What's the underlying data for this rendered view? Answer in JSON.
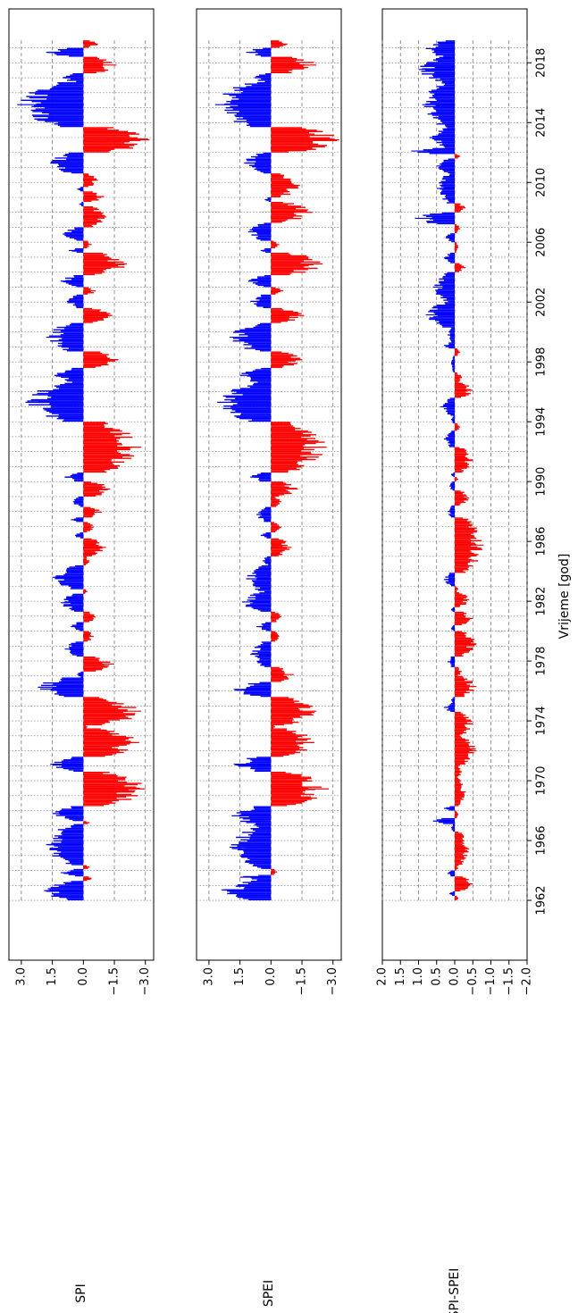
{
  "chart_data": {
    "type": "bar",
    "orientation": "rotated-90-clockwise",
    "shared_xlabel": "Vrijeme [god]",
    "x_ticks": [
      1962,
      1966,
      1970,
      1974,
      1978,
      1982,
      1986,
      1990,
      1994,
      1998,
      2002,
      2006,
      2010,
      2014,
      2018
    ],
    "x_tick_labels": [
      "1962",
      "1966",
      "1970",
      "1974",
      "1978",
      "1982",
      "1986",
      "1990",
      "1994",
      "1998",
      "2002",
      "2006",
      "2010",
      "2014",
      "2018"
    ],
    "xlim": [
      1958.0,
      2021.6
    ],
    "data_start_year": 1962.0,
    "data_end_year": 2019.5,
    "positive_color": "#0000ff",
    "negative_color": "#ff0000",
    "grid": "dashed",
    "panels": [
      {
        "ylabel": "SPI",
        "ylim": [
          -3.4,
          3.6
        ],
        "y_ticks": [
          3.0,
          1.5,
          0.0,
          -1.5,
          -3.0
        ],
        "y_tick_labels": [
          "3.0",
          "1.5",
          "0.0",
          "−1.5",
          "−3.0"
        ],
        "segments": [
          {
            "start": 1962.0,
            "end": 1963.3,
            "peak": 1.9
          },
          {
            "start": 1963.3,
            "end": 1963.6,
            "peak": -0.4
          },
          {
            "start": 1963.6,
            "end": 1964.1,
            "peak": 1.1
          },
          {
            "start": 1964.1,
            "end": 1964.35,
            "peak": -0.3
          },
          {
            "start": 1964.35,
            "end": 1967.1,
            "peak": 1.8
          },
          {
            "start": 1967.1,
            "end": 1967.3,
            "peak": -0.3
          },
          {
            "start": 1967.3,
            "end": 1968.3,
            "peak": 1.5
          },
          {
            "start": 1968.3,
            "end": 1970.6,
            "peak": -3.0
          },
          {
            "start": 1970.6,
            "end": 1971.6,
            "peak": 1.6
          },
          {
            "start": 1971.6,
            "end": 1973.5,
            "peak": -2.7
          },
          {
            "start": 1973.5,
            "end": 1973.7,
            "peak": -0.2
          },
          {
            "start": 1973.7,
            "end": 1975.6,
            "peak": -2.8
          },
          {
            "start": 1975.6,
            "end": 1976.9,
            "peak": 2.2
          },
          {
            "start": 1976.9,
            "end": 1977.3,
            "peak": 0.3
          },
          {
            "start": 1977.3,
            "end": 1978.3,
            "peak": -1.5
          },
          {
            "start": 1978.3,
            "end": 1979.3,
            "peak": 0.9
          },
          {
            "start": 1979.3,
            "end": 1980.0,
            "peak": -0.5
          },
          {
            "start": 1980.0,
            "end": 1980.6,
            "peak": 0.6
          },
          {
            "start": 1980.6,
            "end": 1981.3,
            "peak": -0.6
          },
          {
            "start": 1981.3,
            "end": 1982.5,
            "peak": 1.1
          },
          {
            "start": 1982.5,
            "end": 1982.8,
            "peak": -0.2
          },
          {
            "start": 1982.8,
            "end": 1984.4,
            "peak": 1.5
          },
          {
            "start": 1984.4,
            "end": 1985.0,
            "peak": -0.3
          },
          {
            "start": 1985.0,
            "end": 1986.2,
            "peak": -1.1
          },
          {
            "start": 1986.2,
            "end": 1986.6,
            "peak": 0.4
          },
          {
            "start": 1986.6,
            "end": 1987.3,
            "peak": -0.5
          },
          {
            "start": 1987.3,
            "end": 1987.6,
            "peak": 0.6
          },
          {
            "start": 1987.6,
            "end": 1988.3,
            "peak": -0.9
          },
          {
            "start": 1988.3,
            "end": 1989.0,
            "peak": 0.5
          },
          {
            "start": 1989.0,
            "end": 1990.0,
            "peak": -1.3
          },
          {
            "start": 1990.0,
            "end": 1990.6,
            "peak": 0.9
          },
          {
            "start": 1990.6,
            "end": 1994.0,
            "peak": -2.8
          },
          {
            "start": 1994.0,
            "end": 1996.6,
            "peak": 2.8
          },
          {
            "start": 1996.6,
            "end": 1997.6,
            "peak": 1.4
          },
          {
            "start": 1997.6,
            "end": 1998.7,
            "peak": -1.7
          },
          {
            "start": 1998.7,
            "end": 2000.6,
            "peak": 1.8
          },
          {
            "start": 2000.6,
            "end": 2001.6,
            "peak": -1.4
          },
          {
            "start": 2001.6,
            "end": 2002.5,
            "peak": 0.8
          },
          {
            "start": 2002.5,
            "end": 2003.0,
            "peak": -0.6
          },
          {
            "start": 2003.0,
            "end": 2003.8,
            "peak": 1.1
          },
          {
            "start": 2003.8,
            "end": 2005.3,
            "peak": -2.1
          },
          {
            "start": 2005.3,
            "end": 2005.6,
            "peak": 0.7
          },
          {
            "start": 2005.6,
            "end": 2006.1,
            "peak": -0.4
          },
          {
            "start": 2006.1,
            "end": 2007.0,
            "peak": 1.0
          },
          {
            "start": 2007.0,
            "end": 2008.4,
            "peak": -1.1
          },
          {
            "start": 2008.4,
            "end": 2008.7,
            "peak": 0.2
          },
          {
            "start": 2008.7,
            "end": 2009.4,
            "peak": -1.0
          },
          {
            "start": 2009.4,
            "end": 2009.7,
            "peak": 0.3
          },
          {
            "start": 2009.7,
            "end": 2010.6,
            "peak": -0.7
          },
          {
            "start": 2010.6,
            "end": 2012.0,
            "peak": 1.6
          },
          {
            "start": 2012.0,
            "end": 2013.7,
            "peak": -3.2
          },
          {
            "start": 2013.7,
            "end": 2016.7,
            "peak": 3.2
          },
          {
            "start": 2016.7,
            "end": 2017.3,
            "peak": 1.0
          },
          {
            "start": 2017.3,
            "end": 2018.4,
            "peak": -1.6
          },
          {
            "start": 2018.4,
            "end": 2019.0,
            "peak": 1.8
          },
          {
            "start": 2019.0,
            "end": 2019.5,
            "peak": -0.7
          }
        ]
      },
      {
        "ylabel": "SPEI",
        "ylim": [
          -3.4,
          3.6
        ],
        "y_ticks": [
          3.0,
          1.5,
          0.0,
          -1.5,
          -3.0
        ],
        "y_tick_labels": [
          "3.0",
          "1.5",
          "0.0",
          "−1.5",
          "−3.0"
        ],
        "segments": [
          {
            "start": 1962.0,
            "end": 1963.4,
            "peak": 2.4
          },
          {
            "start": 1963.4,
            "end": 1963.7,
            "peak": 1.5
          },
          {
            "start": 1963.7,
            "end": 1964.1,
            "peak": -0.3
          },
          {
            "start": 1964.1,
            "end": 1967.0,
            "peak": 2.0
          },
          {
            "start": 1967.0,
            "end": 1968.3,
            "peak": 1.9
          },
          {
            "start": 1968.3,
            "end": 1970.6,
            "peak": -2.8
          },
          {
            "start": 1970.6,
            "end": 1971.6,
            "peak": 1.8
          },
          {
            "start": 1971.6,
            "end": 1973.5,
            "peak": -2.1
          },
          {
            "start": 1973.5,
            "end": 1973.7,
            "peak": -0.2
          },
          {
            "start": 1973.7,
            "end": 1975.6,
            "peak": -2.2
          },
          {
            "start": 1975.6,
            "end": 1976.6,
            "peak": 1.8
          },
          {
            "start": 1976.6,
            "end": 1977.6,
            "peak": -1.1
          },
          {
            "start": 1977.6,
            "end": 1979.3,
            "peak": 1.0
          },
          {
            "start": 1979.3,
            "end": 1980.0,
            "peak": -0.4
          },
          {
            "start": 1980.0,
            "end": 1980.6,
            "peak": 0.7
          },
          {
            "start": 1980.6,
            "end": 1981.3,
            "peak": -0.5
          },
          {
            "start": 1981.3,
            "end": 1982.6,
            "peak": 1.4
          },
          {
            "start": 1982.6,
            "end": 1984.4,
            "peak": 1.2
          },
          {
            "start": 1984.4,
            "end": 1985.0,
            "peak": 0.4
          },
          {
            "start": 1985.0,
            "end": 1986.2,
            "peak": -1.0
          },
          {
            "start": 1986.2,
            "end": 1986.6,
            "peak": 0.5
          },
          {
            "start": 1986.6,
            "end": 1987.3,
            "peak": -0.5
          },
          {
            "start": 1987.3,
            "end": 1988.3,
            "peak": 0.7
          },
          {
            "start": 1988.3,
            "end": 1989.0,
            "peak": -0.5
          },
          {
            "start": 1989.0,
            "end": 1990.0,
            "peak": -1.3
          },
          {
            "start": 1990.0,
            "end": 1990.6,
            "peak": 1.0
          },
          {
            "start": 1990.6,
            "end": 1994.0,
            "peak": -2.7
          },
          {
            "start": 1994.0,
            "end": 1996.6,
            "peak": 2.6
          },
          {
            "start": 1996.6,
            "end": 1997.6,
            "peak": 1.5
          },
          {
            "start": 1997.6,
            "end": 1998.7,
            "peak": -1.5
          },
          {
            "start": 1998.7,
            "end": 2000.6,
            "peak": 2.0
          },
          {
            "start": 2000.6,
            "end": 2001.6,
            "peak": -1.6
          },
          {
            "start": 2001.6,
            "end": 2002.5,
            "peak": 1.0
          },
          {
            "start": 2002.5,
            "end": 2003.0,
            "peak": -0.6
          },
          {
            "start": 2003.0,
            "end": 2003.8,
            "peak": 1.1
          },
          {
            "start": 2003.8,
            "end": 2005.3,
            "peak": -2.5
          },
          {
            "start": 2005.3,
            "end": 2005.6,
            "peak": 0.5
          },
          {
            "start": 2005.6,
            "end": 2006.1,
            "peak": -0.4
          },
          {
            "start": 2006.1,
            "end": 2007.3,
            "peak": 1.1
          },
          {
            "start": 2007.3,
            "end": 2008.7,
            "peak": -2.0
          },
          {
            "start": 2008.7,
            "end": 2009.0,
            "peak": 0.3
          },
          {
            "start": 2009.0,
            "end": 2010.6,
            "peak": -1.4
          },
          {
            "start": 2010.6,
            "end": 2012.0,
            "peak": 1.3
          },
          {
            "start": 2012.0,
            "end": 2013.7,
            "peak": -3.3
          },
          {
            "start": 2013.7,
            "end": 2016.7,
            "peak": 2.7
          },
          {
            "start": 2016.7,
            "end": 2017.3,
            "peak": 0.8
          },
          {
            "start": 2017.3,
            "end": 2018.4,
            "peak": -2.2
          },
          {
            "start": 2018.4,
            "end": 2019.0,
            "peak": 1.2
          },
          {
            "start": 2019.0,
            "end": 2019.5,
            "peak": -0.8
          }
        ]
      },
      {
        "ylabel": "SPI-SPEI",
        "ylim": [
          -2.0,
          2.0
        ],
        "y_ticks": [
          2.0,
          1.5,
          1.0,
          0.5,
          0.0,
          -0.5,
          -1.0,
          -1.5,
          -2.0
        ],
        "y_tick_labels": [
          "2.0",
          "1.5",
          "1.0",
          "0.5",
          "0.0",
          "−0.5",
          "−1.0",
          "−1.5",
          "−2.0"
        ],
        "segments": [
          {
            "start": 1962.0,
            "end": 1962.3,
            "peak": -0.1
          },
          {
            "start": 1962.3,
            "end": 1962.6,
            "peak": 0.15
          },
          {
            "start": 1962.6,
            "end": 1963.6,
            "peak": -0.5
          },
          {
            "start": 1963.6,
            "end": 1964.0,
            "peak": 0.2
          },
          {
            "start": 1964.0,
            "end": 1964.3,
            "peak": -0.1
          },
          {
            "start": 1964.3,
            "end": 1966.6,
            "peak": -0.4
          },
          {
            "start": 1966.6,
            "end": 1967.1,
            "peak": 0.1
          },
          {
            "start": 1967.1,
            "end": 1967.5,
            "peak": 0.6
          },
          {
            "start": 1967.5,
            "end": 1968.0,
            "peak": -0.1
          },
          {
            "start": 1968.0,
            "end": 1968.3,
            "peak": 0.3
          },
          {
            "start": 1968.3,
            "end": 1970.2,
            "peak": -0.3
          },
          {
            "start": 1970.2,
            "end": 1971.0,
            "peak": -0.2
          },
          {
            "start": 1971.0,
            "end": 1973.0,
            "peak": -0.6
          },
          {
            "start": 1973.0,
            "end": 1974.6,
            "peak": -0.5
          },
          {
            "start": 1974.6,
            "end": 1975.2,
            "peak": 0.3
          },
          {
            "start": 1975.2,
            "end": 1975.6,
            "peak": 0.1
          },
          {
            "start": 1975.6,
            "end": 1977.0,
            "peak": -0.6
          },
          {
            "start": 1977.0,
            "end": 1977.6,
            "peak": -0.2
          },
          {
            "start": 1977.6,
            "end": 1978.3,
            "peak": 0.2
          },
          {
            "start": 1978.3,
            "end": 1980.0,
            "peak": -0.6
          },
          {
            "start": 1980.0,
            "end": 1980.4,
            "peak": 0.1
          },
          {
            "start": 1980.4,
            "end": 1981.3,
            "peak": -0.5
          },
          {
            "start": 1981.3,
            "end": 1981.6,
            "peak": 0.1
          },
          {
            "start": 1981.6,
            "end": 1982.6,
            "peak": -0.4
          },
          {
            "start": 1982.6,
            "end": 1983.0,
            "peak": -0.1
          },
          {
            "start": 1983.0,
            "end": 1983.9,
            "peak": 0.3
          },
          {
            "start": 1983.9,
            "end": 1987.6,
            "peak": -0.8
          },
          {
            "start": 1987.6,
            "end": 1988.4,
            "peak": 0.2
          },
          {
            "start": 1988.4,
            "end": 1989.4,
            "peak": -0.4
          },
          {
            "start": 1989.4,
            "end": 1990.0,
            "peak": 0.15
          },
          {
            "start": 1990.0,
            "end": 1990.3,
            "peak": -0.1
          },
          {
            "start": 1990.3,
            "end": 1990.6,
            "peak": 0.1
          },
          {
            "start": 1990.6,
            "end": 1992.3,
            "peak": -0.5
          },
          {
            "start": 1992.3,
            "end": 1993.4,
            "peak": 0.3
          },
          {
            "start": 1993.4,
            "end": 1993.9,
            "peak": -0.15
          },
          {
            "start": 1993.9,
            "end": 1994.4,
            "peak": 0.1
          },
          {
            "start": 1994.4,
            "end": 1995.6,
            "peak": 0.4
          },
          {
            "start": 1995.6,
            "end": 1996.6,
            "peak": -0.5
          },
          {
            "start": 1996.6,
            "end": 1997.3,
            "peak": -0.2
          },
          {
            "start": 1997.3,
            "end": 1998.4,
            "peak": 0.1
          },
          {
            "start": 1998.4,
            "end": 1998.9,
            "peak": -0.15
          },
          {
            "start": 1998.9,
            "end": 1999.3,
            "peak": 0.3
          },
          {
            "start": 1999.3,
            "end": 2000.3,
            "peak": 0.2
          },
          {
            "start": 2000.3,
            "end": 2002.0,
            "peak": 0.8
          },
          {
            "start": 2002.0,
            "end": 2004.0,
            "peak": 0.6
          },
          {
            "start": 2004.0,
            "end": 2004.6,
            "peak": -0.3
          },
          {
            "start": 2004.6,
            "end": 2005.3,
            "peak": 0.3
          },
          {
            "start": 2005.3,
            "end": 2006.0,
            "peak": -0.1
          },
          {
            "start": 2006.0,
            "end": 2006.6,
            "peak": 0.25
          },
          {
            "start": 2006.6,
            "end": 2007.2,
            "peak": -0.15
          },
          {
            "start": 2007.2,
            "end": 2008.0,
            "peak": 1.1
          },
          {
            "start": 2008.0,
            "end": 2008.6,
            "peak": -0.3
          },
          {
            "start": 2008.6,
            "end": 2010.6,
            "peak": 0.5
          },
          {
            "start": 2010.6,
            "end": 2011.6,
            "peak": 0.5
          },
          {
            "start": 2011.6,
            "end": 2011.9,
            "peak": -0.15
          },
          {
            "start": 2011.9,
            "end": 2012.3,
            "peak": 1.2
          },
          {
            "start": 2012.3,
            "end": 2013.7,
            "peak": 0.7
          },
          {
            "start": 2013.7,
            "end": 2016.7,
            "peak": 0.9
          },
          {
            "start": 2016.7,
            "end": 2018.4,
            "peak": 1.0
          },
          {
            "start": 2018.4,
            "end": 2019.5,
            "peak": 0.8
          }
        ]
      }
    ]
  }
}
